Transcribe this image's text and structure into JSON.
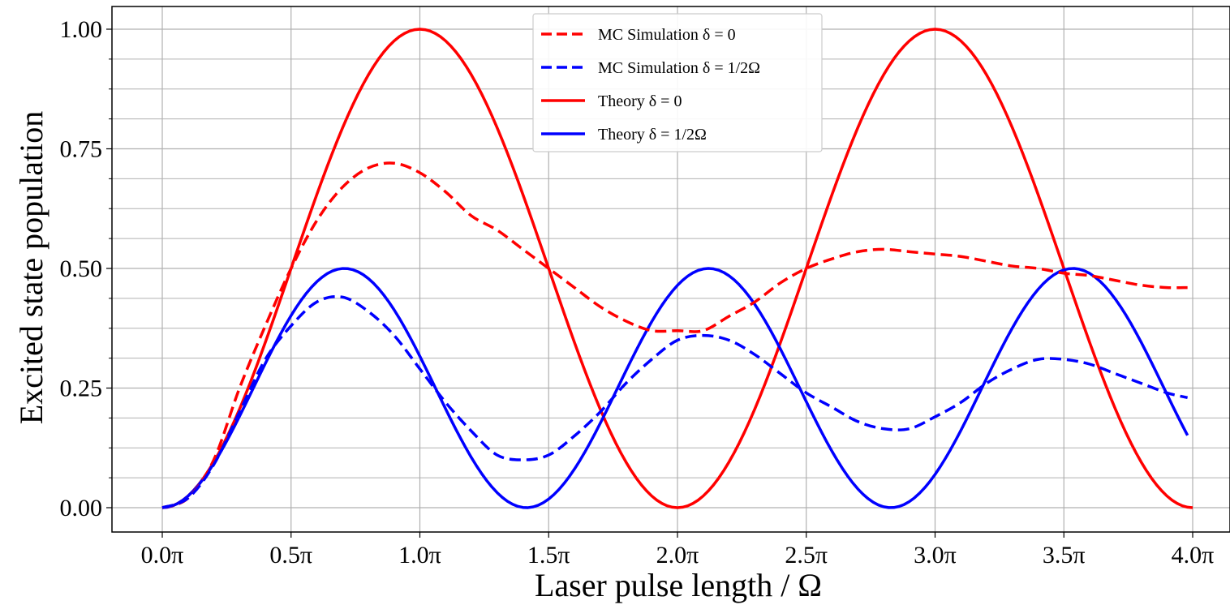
{
  "chart_data": {
    "type": "line",
    "xlabel": "Laser pulse length / Ω",
    "ylabel": "Excited state population",
    "xlim": [
      -0.2,
      4.05
    ],
    "ylim": [
      -0.05,
      1.05
    ],
    "x_unit": "π",
    "xticks": [
      0.0,
      0.5,
      1.0,
      1.5,
      2.0,
      2.5,
      3.0,
      3.5,
      4.0
    ],
    "xtick_labels": [
      "0.0π",
      "0.5π",
      "1.0π",
      "1.5π",
      "2.0π",
      "2.5π",
      "3.0π",
      "3.5π",
      "4.0π"
    ],
    "yticks": [
      0.0,
      0.25,
      0.5,
      0.75,
      1.0
    ],
    "ytick_labels": [
      "0.00",
      "0.25",
      "0.50",
      "0.75",
      "1.00"
    ],
    "yminor": [
      0.0625,
      0.125,
      0.1875,
      0.3125,
      0.375,
      0.4375,
      0.5625,
      0.625,
      0.6875,
      0.8125,
      0.875,
      0.9375
    ],
    "grid": true,
    "legend_position": "top-center",
    "series": [
      {
        "name": "MC Simulation δ = 0",
        "legend_label": "MC Simulation δ = 0",
        "color": "#ff0000",
        "style": "dashed",
        "points": [
          [
            0.0,
            0.0
          ],
          [
            0.1,
            0.02
          ],
          [
            0.2,
            0.1
          ],
          [
            0.3,
            0.25
          ],
          [
            0.4,
            0.38
          ],
          [
            0.5,
            0.5
          ],
          [
            0.6,
            0.6
          ],
          [
            0.7,
            0.67
          ],
          [
            0.8,
            0.71
          ],
          [
            0.9,
            0.72
          ],
          [
            1.0,
            0.7
          ],
          [
            1.1,
            0.66
          ],
          [
            1.2,
            0.61
          ],
          [
            1.3,
            0.58
          ],
          [
            1.4,
            0.54
          ],
          [
            1.5,
            0.5
          ],
          [
            1.6,
            0.46
          ],
          [
            1.7,
            0.42
          ],
          [
            1.8,
            0.39
          ],
          [
            1.9,
            0.37
          ],
          [
            2.0,
            0.37
          ],
          [
            2.1,
            0.37
          ],
          [
            2.2,
            0.4
          ],
          [
            2.3,
            0.43
          ],
          [
            2.4,
            0.47
          ],
          [
            2.5,
            0.5
          ],
          [
            2.6,
            0.52
          ],
          [
            2.7,
            0.535
          ],
          [
            2.8,
            0.54
          ],
          [
            2.9,
            0.535
          ],
          [
            3.0,
            0.53
          ],
          [
            3.1,
            0.525
          ],
          [
            3.2,
            0.515
          ],
          [
            3.3,
            0.505
          ],
          [
            3.4,
            0.5
          ],
          [
            3.5,
            0.49
          ],
          [
            3.6,
            0.485
          ],
          [
            3.7,
            0.475
          ],
          [
            3.8,
            0.465
          ],
          [
            3.9,
            0.46
          ],
          [
            3.98,
            0.46
          ]
        ]
      },
      {
        "name": "MC Simulation δ = 1/2Ω",
        "legend_label": "MC Simulation δ = 1/2Ω",
        "color": "#0000ff",
        "style": "dashed",
        "points": [
          [
            0.0,
            0.0
          ],
          [
            0.1,
            0.02
          ],
          [
            0.2,
            0.09
          ],
          [
            0.3,
            0.2
          ],
          [
            0.4,
            0.31
          ],
          [
            0.5,
            0.38
          ],
          [
            0.6,
            0.43
          ],
          [
            0.7,
            0.44
          ],
          [
            0.8,
            0.41
          ],
          [
            0.9,
            0.36
          ],
          [
            1.0,
            0.29
          ],
          [
            1.1,
            0.22
          ],
          [
            1.2,
            0.16
          ],
          [
            1.3,
            0.11
          ],
          [
            1.4,
            0.1
          ],
          [
            1.5,
            0.11
          ],
          [
            1.6,
            0.15
          ],
          [
            1.7,
            0.2
          ],
          [
            1.8,
            0.26
          ],
          [
            1.9,
            0.31
          ],
          [
            2.0,
            0.35
          ],
          [
            2.1,
            0.36
          ],
          [
            2.2,
            0.35
          ],
          [
            2.3,
            0.32
          ],
          [
            2.4,
            0.28
          ],
          [
            2.5,
            0.24
          ],
          [
            2.6,
            0.21
          ],
          [
            2.7,
            0.18
          ],
          [
            2.8,
            0.165
          ],
          [
            2.9,
            0.165
          ],
          [
            3.0,
            0.19
          ],
          [
            3.1,
            0.22
          ],
          [
            3.2,
            0.26
          ],
          [
            3.3,
            0.29
          ],
          [
            3.4,
            0.31
          ],
          [
            3.5,
            0.31
          ],
          [
            3.6,
            0.3
          ],
          [
            3.7,
            0.28
          ],
          [
            3.8,
            0.26
          ],
          [
            3.9,
            0.24
          ],
          [
            3.98,
            0.23
          ]
        ]
      },
      {
        "name": "Theory δ = 0",
        "legend_label": "Theory δ = 0",
        "color": "#ff0000",
        "style": "solid",
        "function": "sin^2(pi*x/2)",
        "points": [
          [
            0.0,
            0.0
          ],
          [
            0.25,
            0.146
          ],
          [
            0.5,
            0.5
          ],
          [
            0.75,
            0.854
          ],
          [
            1.0,
            1.0
          ],
          [
            1.25,
            0.854
          ],
          [
            1.5,
            0.5
          ],
          [
            1.75,
            0.146
          ],
          [
            2.0,
            0.0
          ],
          [
            2.25,
            0.146
          ],
          [
            2.5,
            0.5
          ],
          [
            2.75,
            0.854
          ],
          [
            3.0,
            1.0
          ],
          [
            3.25,
            0.854
          ],
          [
            3.5,
            0.5
          ],
          [
            3.75,
            0.146
          ],
          [
            4.0,
            0.0
          ]
        ]
      },
      {
        "name": "Theory δ = 1/2Ω",
        "legend_label": "Theory δ = 1/2Ω",
        "color": "#0000ff",
        "style": "solid",
        "function": "0.5*sin^2(pi*x/sqrt(2)/2*sqrt(2)... approx 0.5*sin^2(1.111*x)",
        "points": [
          [
            0.0,
            0.0
          ],
          [
            0.35,
            0.25
          ],
          [
            0.707,
            0.5
          ],
          [
            1.06,
            0.25
          ],
          [
            1.414,
            0.0
          ],
          [
            1.77,
            0.25
          ],
          [
            2.12,
            0.5
          ],
          [
            2.47,
            0.25
          ],
          [
            2.83,
            0.0
          ],
          [
            3.18,
            0.25
          ],
          [
            3.54,
            0.5
          ],
          [
            3.89,
            0.25
          ],
          [
            3.99,
            0.14
          ]
        ]
      }
    ]
  }
}
